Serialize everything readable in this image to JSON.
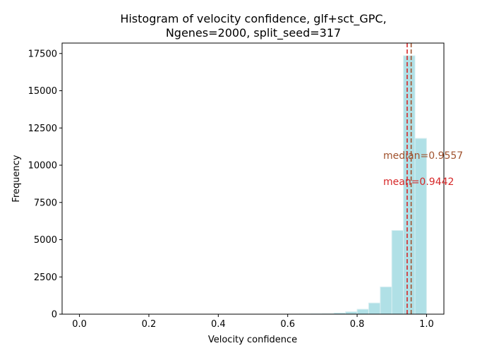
{
  "chart_data": {
    "type": "bar",
    "title_line1": "Histogram of velocity confidence, glf+sct_GPC,",
    "title_line2": "Ngenes=2000, split_seed=317",
    "xlabel": "Velocity confidence",
    "ylabel": "Frequency",
    "xlim": [
      -0.05,
      1.05
    ],
    "ylim": [
      0,
      18200
    ],
    "xticks": [
      {
        "value": 0.0,
        "label": "0.0"
      },
      {
        "value": 0.2,
        "label": "0.2"
      },
      {
        "value": 0.4,
        "label": "0.4"
      },
      {
        "value": 0.6,
        "label": "0.6"
      },
      {
        "value": 0.8,
        "label": "0.8"
      },
      {
        "value": 1.0,
        "label": "1.0"
      }
    ],
    "yticks": [
      {
        "value": 0,
        "label": "0"
      },
      {
        "value": 2500,
        "label": "2500"
      },
      {
        "value": 5000,
        "label": "5000"
      },
      {
        "value": 7500,
        "label": "7500"
      },
      {
        "value": 10000,
        "label": "10000"
      },
      {
        "value": 12500,
        "label": "12500"
      },
      {
        "value": 15000,
        "label": "15000"
      },
      {
        "value": 17500,
        "label": "17500"
      }
    ],
    "bin_edges": [
      0.0,
      0.0333,
      0.0667,
      0.1,
      0.1333,
      0.1667,
      0.2,
      0.2333,
      0.2667,
      0.3,
      0.3333,
      0.3667,
      0.4,
      0.4333,
      0.4667,
      0.5,
      0.5333,
      0.5667,
      0.6,
      0.6333,
      0.6667,
      0.7,
      0.7333,
      0.7667,
      0.8,
      0.8333,
      0.8667,
      0.9,
      0.9333,
      0.9667,
      1.0
    ],
    "counts": [
      0,
      0,
      0,
      0,
      0,
      0,
      0,
      0,
      0,
      0,
      0,
      0,
      0,
      0,
      0,
      0,
      0,
      0,
      5,
      10,
      20,
      35,
      80,
      160,
      330,
      750,
      1830,
      5620,
      17350,
      11800
    ],
    "bar_color": "#b0e0e6",
    "bar_edge_color": "#d8eef1",
    "median": {
      "value": 0.9557,
      "label": "median=0.9557",
      "color": "#a0522d"
    },
    "mean": {
      "value": 0.9442,
      "label": "mean=0.9442",
      "color": "#d62728"
    },
    "grid": false
  }
}
